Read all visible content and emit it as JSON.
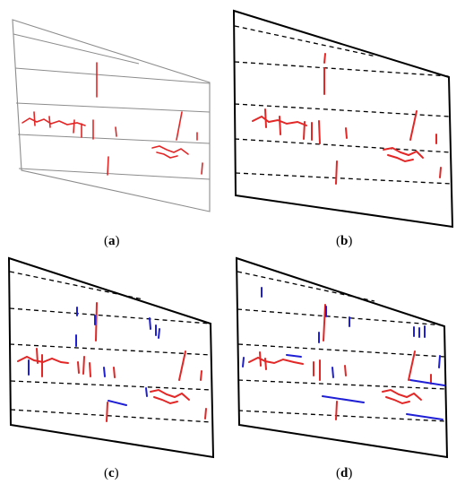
{
  "colors": {
    "background": "#ffffff",
    "outline_thin": "#8c8c8c",
    "outline_thick": "#000000",
    "dashed_line": "#000000",
    "crack_red": "#e32626",
    "crack_blue": "#1f1fd6"
  },
  "panels": [
    {
      "id": "a",
      "label_open": "(",
      "label_letter": "a",
      "label_close": ")",
      "style": "thin-solid-grey",
      "description": ""
    },
    {
      "id": "b",
      "label_open": "(",
      "label_letter": "b",
      "label_close": ")",
      "style": "thick-outline-dashed"
    },
    {
      "id": "c",
      "label_open": "(",
      "label_letter": "c",
      "label_close": ")",
      "style": "thick-outline-dashed-with-blue"
    },
    {
      "id": "d",
      "label_open": "(",
      "label_letter": "d",
      "label_close": ")",
      "style": "thick-outline-dashed-with-blue"
    }
  ]
}
